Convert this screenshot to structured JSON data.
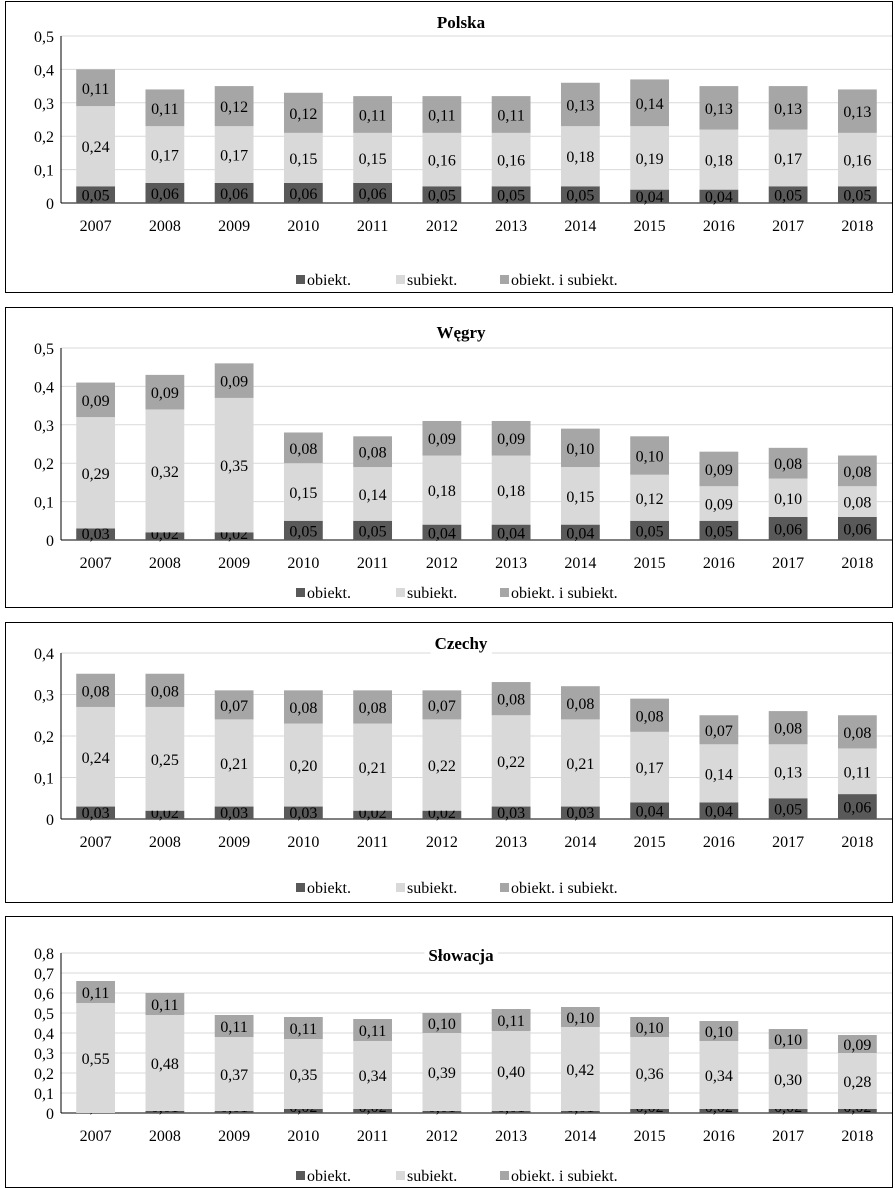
{
  "colors": {
    "obiekt": "#595959",
    "subiekt": "#d9d9d9",
    "both": "#a6a6a6",
    "grid": "#d9d9d9",
    "axis": "#000000"
  },
  "chart_data": [
    {
      "type": "bar",
      "stacked": true,
      "title": "Polska",
      "categories": [
        "2007",
        "2008",
        "2009",
        "2010",
        "2011",
        "2012",
        "2013",
        "2014",
        "2015",
        "2016",
        "2017",
        "2018"
      ],
      "ylim": [
        0,
        0.5
      ],
      "yticks": [
        "0",
        "0,1",
        "0,2",
        "0,3",
        "0,4",
        "0,5"
      ],
      "grid": true,
      "legend_position": "bottom",
      "series": [
        {
          "name": "obiekt.",
          "values": [
            0.05,
            0.06,
            0.06,
            0.06,
            0.06,
            0.05,
            0.05,
            0.05,
            0.04,
            0.04,
            0.05,
            0.05
          ],
          "labels": [
            "0,05",
            "0,06",
            "0,06",
            "0,06",
            "0,06",
            "0,05",
            "0,05",
            "0,05",
            "0,04",
            "0,04",
            "0,05",
            "0,05"
          ]
        },
        {
          "name": "subiekt.",
          "values": [
            0.24,
            0.17,
            0.17,
            0.15,
            0.15,
            0.16,
            0.16,
            0.18,
            0.19,
            0.18,
            0.17,
            0.16
          ],
          "labels": [
            "0,24",
            "0,17",
            "0,17",
            "0,15",
            "0,15",
            "0,16",
            "0,16",
            "0,18",
            "0,19",
            "0,18",
            "0,17",
            "0,16"
          ]
        },
        {
          "name": "obiekt. i subiekt.",
          "values": [
            0.11,
            0.11,
            0.12,
            0.12,
            0.11,
            0.11,
            0.11,
            0.13,
            0.14,
            0.13,
            0.13,
            0.13
          ],
          "labels": [
            "0,11",
            "0,11",
            "0,12",
            "0,12",
            "0,11",
            "0,11",
            "0,11",
            "0,13",
            "0,14",
            "0,13",
            "0,13",
            "0,13"
          ]
        }
      ]
    },
    {
      "type": "bar",
      "stacked": true,
      "title": "Węgry",
      "categories": [
        "2007",
        "2008",
        "2009",
        "2010",
        "2011",
        "2012",
        "2013",
        "2014",
        "2015",
        "2016",
        "2017",
        "2018"
      ],
      "ylim": [
        0,
        0.5
      ],
      "yticks": [
        "0",
        "0,1",
        "0,2",
        "0,3",
        "0,4",
        "0,5"
      ],
      "grid": true,
      "legend_position": "bottom",
      "series": [
        {
          "name": "obiekt.",
          "values": [
            0.03,
            0.02,
            0.02,
            0.05,
            0.05,
            0.04,
            0.04,
            0.04,
            0.05,
            0.05,
            0.06,
            0.06
          ],
          "labels": [
            "0,03",
            "0,02",
            "0,02",
            "0,05",
            "0,05",
            "0,04",
            "0,04",
            "0,04",
            "0,05",
            "0,05",
            "0,06",
            "0,06"
          ]
        },
        {
          "name": "subiekt.",
          "values": [
            0.29,
            0.32,
            0.35,
            0.15,
            0.14,
            0.18,
            0.18,
            0.15,
            0.12,
            0.09,
            0.1,
            0.08
          ],
          "labels": [
            "0,29",
            "0,32",
            "0,35",
            "0,15",
            "0,14",
            "0,18",
            "0,18",
            "0,15",
            "0,12",
            "0,09",
            "0,10",
            "0,08"
          ]
        },
        {
          "name": "obiekt. i subiekt.",
          "values": [
            0.09,
            0.09,
            0.09,
            0.08,
            0.08,
            0.09,
            0.09,
            0.1,
            0.1,
            0.09,
            0.08,
            0.08
          ],
          "labels": [
            "0,09",
            "0,09",
            "0,09",
            "0,08",
            "0,08",
            "0,09",
            "0,09",
            "0,10",
            "0,10",
            "0,09",
            "0,08",
            "0,08"
          ]
        }
      ]
    },
    {
      "type": "bar",
      "stacked": true,
      "title": "Czechy",
      "categories": [
        "2007",
        "2008",
        "2009",
        "2010",
        "2011",
        "2012",
        "2013",
        "2014",
        "2015",
        "2016",
        "2017",
        "2018"
      ],
      "ylim": [
        0,
        0.4
      ],
      "yticks": [
        "0",
        "0,1",
        "0,2",
        "0,3",
        "0,4"
      ],
      "grid": true,
      "legend_position": "bottom",
      "series": [
        {
          "name": "obiekt.",
          "values": [
            0.03,
            0.02,
            0.03,
            0.03,
            0.02,
            0.02,
            0.03,
            0.03,
            0.04,
            0.04,
            0.05,
            0.06
          ],
          "labels": [
            "0,03",
            "0,02",
            "0,03",
            "0,03",
            "0,02",
            "0,02",
            "0,03",
            "0,03",
            "0,04",
            "0,04",
            "0,05",
            "0,06"
          ]
        },
        {
          "name": "subiekt.",
          "values": [
            0.24,
            0.25,
            0.21,
            0.2,
            0.21,
            0.22,
            0.22,
            0.21,
            0.17,
            0.14,
            0.13,
            0.11
          ],
          "labels": [
            "0,24",
            "0,25",
            "0,21",
            "0,20",
            "0,21",
            "0,22",
            "0,22",
            "0,21",
            "0,17",
            "0,14",
            "0,13",
            "0,11"
          ]
        },
        {
          "name": "obiekt. i subiekt.",
          "values": [
            0.08,
            0.08,
            0.07,
            0.08,
            0.08,
            0.07,
            0.08,
            0.08,
            0.08,
            0.07,
            0.08,
            0.08
          ],
          "labels": [
            "0,08",
            "0,08",
            "0,07",
            "0,08",
            "0,08",
            "0,07",
            "0,08",
            "0,08",
            "0,08",
            "0,07",
            "0,08",
            "0,08"
          ]
        }
      ]
    },
    {
      "type": "bar",
      "stacked": true,
      "title": "Słowacja",
      "categories": [
        "2007",
        "2008",
        "2009",
        "2010",
        "2011",
        "2012",
        "2013",
        "2014",
        "2015",
        "2016",
        "2017",
        "2018"
      ],
      "ylim": [
        0,
        0.8
      ],
      "yticks": [
        "0",
        "0,1",
        "0,2",
        "0,3",
        "0,4",
        "0,5",
        "0,6",
        "0,7",
        "0,8"
      ],
      "grid": true,
      "legend_position": "bottom",
      "series": [
        {
          "name": "obiekt.",
          "values": [
            0.0,
            0.01,
            0.01,
            0.02,
            0.02,
            0.01,
            0.01,
            0.01,
            0.02,
            0.02,
            0.02,
            0.02
          ],
          "labels": [
            "0,00",
            "0,01",
            "0,01",
            "0,02",
            "0,02",
            "0,01",
            "0,01",
            "0,01",
            "0,02",
            "0,02",
            "0,02",
            "0,02"
          ]
        },
        {
          "name": "subiekt.",
          "values": [
            0.55,
            0.48,
            0.37,
            0.35,
            0.34,
            0.39,
            0.4,
            0.42,
            0.36,
            0.34,
            0.3,
            0.28
          ],
          "labels": [
            "0,55",
            "0,48",
            "0,37",
            "0,35",
            "0,34",
            "0,39",
            "0,40",
            "0,42",
            "0,36",
            "0,34",
            "0,30",
            "0,28"
          ]
        },
        {
          "name": "obiekt. i subiekt.",
          "values": [
            0.11,
            0.11,
            0.11,
            0.11,
            0.11,
            0.1,
            0.11,
            0.1,
            0.1,
            0.1,
            0.1,
            0.09
          ],
          "labels": [
            "0,11",
            "0,11",
            "0,11",
            "0,11",
            "0,11",
            "0,10",
            "0,11",
            "0,10",
            "0,10",
            "0,10",
            "0,10",
            "0,09"
          ]
        }
      ]
    }
  ]
}
